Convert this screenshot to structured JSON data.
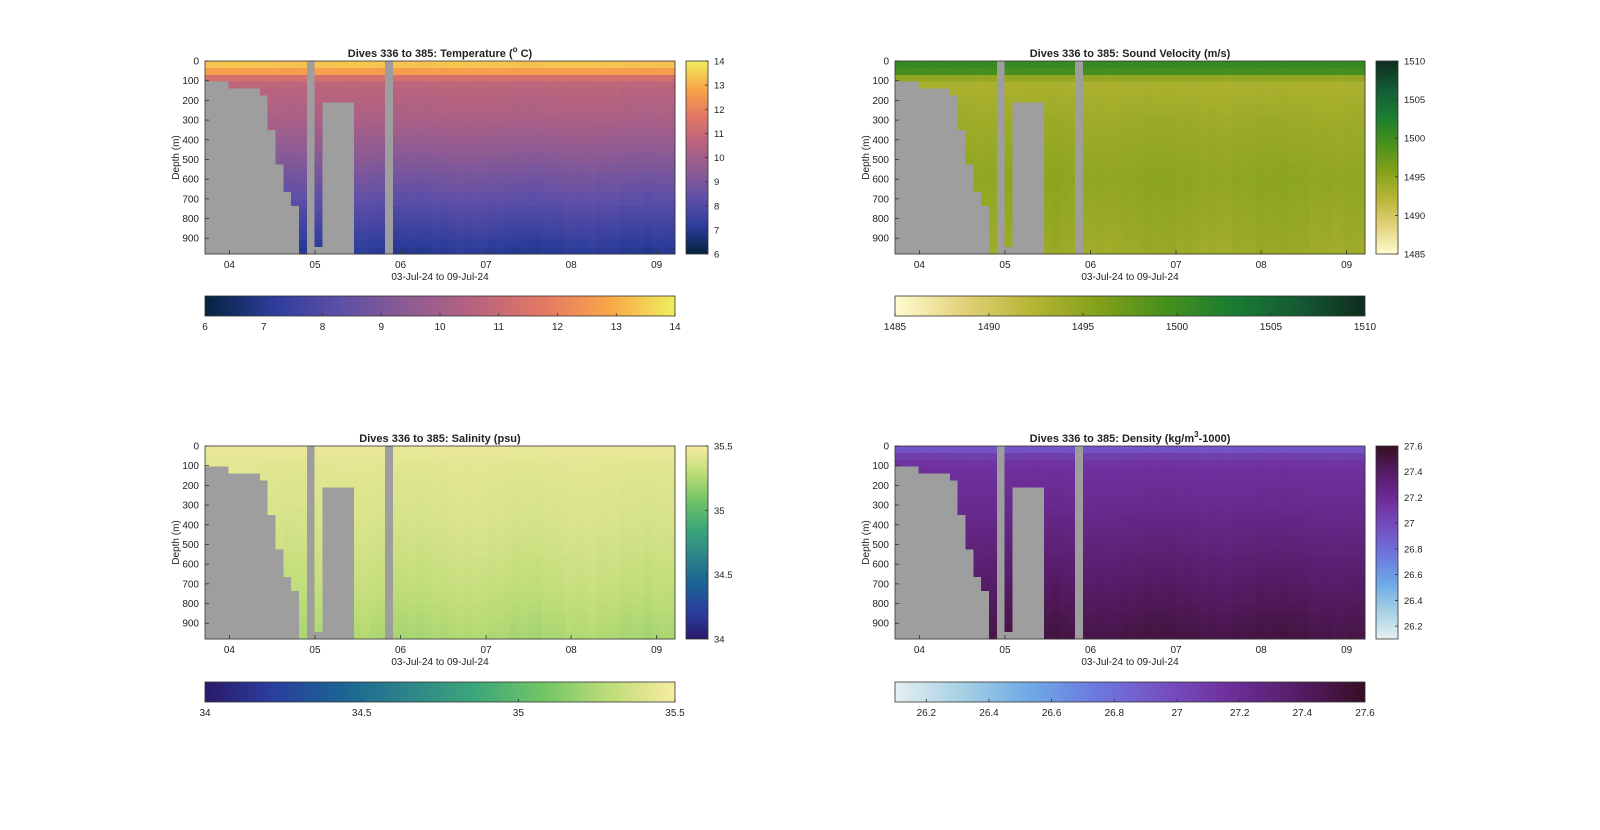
{
  "panels": [
    {
      "key": "temperature",
      "title_main": "Dives 336 to 385: Temperature (",
      "title_sup": "o",
      "title_tail": " C)",
      "xlabel": "03-Jul-24 to 09-Jul-24",
      "ylabel": "Depth (m)",
      "colormap": "thermal",
      "colormap_colors": [
        "#04233e",
        "#2c3c9a",
        "#5d4fa8",
        "#8d5b93",
        "#b7637f",
        "#e27765",
        "#f9a548",
        "#f0ef5e"
      ],
      "gap_color": "#9e9e9e",
      "cbar_ticks": [
        "6",
        "7",
        "8",
        "9",
        "10",
        "11",
        "12",
        "13",
        "14"
      ],
      "hbar_ticks": [
        "6",
        "7",
        "8",
        "9",
        "10",
        "11",
        "12",
        "13",
        "14"
      ]
    },
    {
      "key": "sound_velocity",
      "title_main": "Dives 336 to 385: Sound Velocity (m/s)",
      "title_sup": "",
      "title_tail": "",
      "xlabel": "03-Jul-24 to 09-Jul-24",
      "ylabel": "Depth (m)",
      "colormap": "speed",
      "colormap_colors": [
        "#fffcd0",
        "#e3d27c",
        "#b8b636",
        "#84a11a",
        "#48901c",
        "#1a7d31",
        "#155a35",
        "#0f2c1e"
      ],
      "gap_color": "#9e9e9e",
      "cbar_ticks": [
        "1485",
        "1490",
        "1495",
        "1500",
        "1505",
        "1510"
      ],
      "hbar_ticks": [
        "1485",
        "1490",
        "1495",
        "1500",
        "1505",
        "1510"
      ]
    },
    {
      "key": "salinity",
      "title_main": "Dives 336 to 385: Salinity (psu)",
      "title_sup": "",
      "title_tail": "",
      "xlabel": "03-Jul-24 to 09-Jul-24",
      "ylabel": "Depth (m)",
      "colormap": "haline",
      "colormap_colors": [
        "#2a1a6c",
        "#2a3e9c",
        "#1b6394",
        "#2c8489",
        "#3ca67a",
        "#6fc466",
        "#bcdc77",
        "#f8eca1"
      ],
      "gap_color": "#9e9e9e",
      "cbar_ticks": [
        "34",
        "34.5",
        "35",
        "35.5"
      ],
      "hbar_ticks": [
        "34",
        "34.5",
        "35",
        "35.5"
      ]
    },
    {
      "key": "density",
      "title_main": "Dives 336 to 385: Density (kg/m",
      "title_sup": "3",
      "title_tail": "-1000)",
      "xlabel": "03-Jul-24 to 09-Jul-24",
      "ylabel": "Depth (m)",
      "colormap": "dense",
      "colormap_colors": [
        "#e7f0f2",
        "#a6d0e4",
        "#6eaae6",
        "#6d79de",
        "#7550c2",
        "#6e2e9a",
        "#561c67",
        "#360e24"
      ],
      "gap_color": "#9e9e9e",
      "cbar_ticks": [
        "26.2",
        "26.4",
        "26.6",
        "26.8",
        "27",
        "27.2",
        "27.4",
        "27.6"
      ],
      "hbar_ticks": [
        "26.2",
        "26.4",
        "26.6",
        "26.8",
        "27",
        "27.2",
        "27.4",
        "27.6"
      ]
    }
  ],
  "chart_data": [
    {
      "type": "heatmap",
      "title": "Dives 336 to 385: Temperature (° C)",
      "xlabel": "03-Jul-24 to 09-Jul-24",
      "ylabel": "Depth (m)",
      "x_ticks": [
        "04",
        "05",
        "06",
        "07",
        "08",
        "09"
      ],
      "y_ticks": [
        0,
        100,
        200,
        300,
        400,
        500,
        600,
        700,
        800,
        900
      ],
      "ylim": [
        0,
        980
      ],
      "y_reversed": true,
      "clim": [
        6,
        14
      ],
      "colorbar_ticks": [
        6,
        7,
        8,
        9,
        10,
        11,
        12,
        13,
        14
      ],
      "profile_depths": [
        0,
        50,
        100,
        300,
        600,
        980
      ],
      "profile_values": [
        13.6,
        12.8,
        10.8,
        10.2,
        8.8,
        7.0
      ]
    },
    {
      "type": "heatmap",
      "title": "Dives 336 to 385: Sound Velocity (m/s)",
      "xlabel": "03-Jul-24 to 09-Jul-24",
      "ylabel": "Depth (m)",
      "x_ticks": [
        "04",
        "05",
        "06",
        "07",
        "08",
        "09"
      ],
      "y_ticks": [
        0,
        100,
        200,
        300,
        400,
        500,
        600,
        700,
        800,
        900
      ],
      "ylim": [
        0,
        980
      ],
      "y_reversed": true,
      "clim": [
        1485,
        1510
      ],
      "colorbar_ticks": [
        1485,
        1490,
        1495,
        1500,
        1505,
        1510
      ],
      "profile_depths": [
        0,
        50,
        100,
        300,
        600,
        980
      ],
      "profile_values": [
        1501,
        1500,
        1493,
        1494,
        1495,
        1494
      ]
    },
    {
      "type": "heatmap",
      "title": "Dives 336 to 385: Salinity (psu)",
      "xlabel": "03-Jul-24 to 09-Jul-24",
      "ylabel": "Depth (m)",
      "x_ticks": [
        "04",
        "05",
        "06",
        "07",
        "08",
        "09"
      ],
      "y_ticks": [
        0,
        100,
        200,
        300,
        400,
        500,
        600,
        700,
        800,
        900
      ],
      "ylim": [
        0,
        980
      ],
      "y_reversed": true,
      "clim": [
        34,
        35.5
      ],
      "colorbar_ticks": [
        34,
        34.5,
        35,
        35.5
      ],
      "profile_depths": [
        0,
        100,
        400,
        700,
        980
      ],
      "profile_values": [
        35.45,
        35.42,
        35.38,
        35.32,
        35.24
      ]
    },
    {
      "type": "heatmap",
      "title": "Dives 336 to 385: Density (kg/m³-1000)",
      "xlabel": "03-Jul-24 to 09-Jul-24",
      "ylabel": "Depth (m)",
      "x_ticks": [
        "04",
        "05",
        "06",
        "07",
        "08",
        "09"
      ],
      "y_ticks": [
        0,
        100,
        200,
        300,
        400,
        500,
        600,
        700,
        800,
        900
      ],
      "ylim": [
        0,
        980
      ],
      "y_reversed": true,
      "clim": [
        26.1,
        27.6
      ],
      "colorbar_ticks": [
        26.2,
        26.4,
        26.6,
        26.8,
        27,
        27.2,
        27.4,
        27.6
      ],
      "profile_depths": [
        0,
        40,
        100,
        300,
        600,
        980
      ],
      "profile_values": [
        26.85,
        27.05,
        27.15,
        27.22,
        27.35,
        27.5
      ]
    }
  ]
}
